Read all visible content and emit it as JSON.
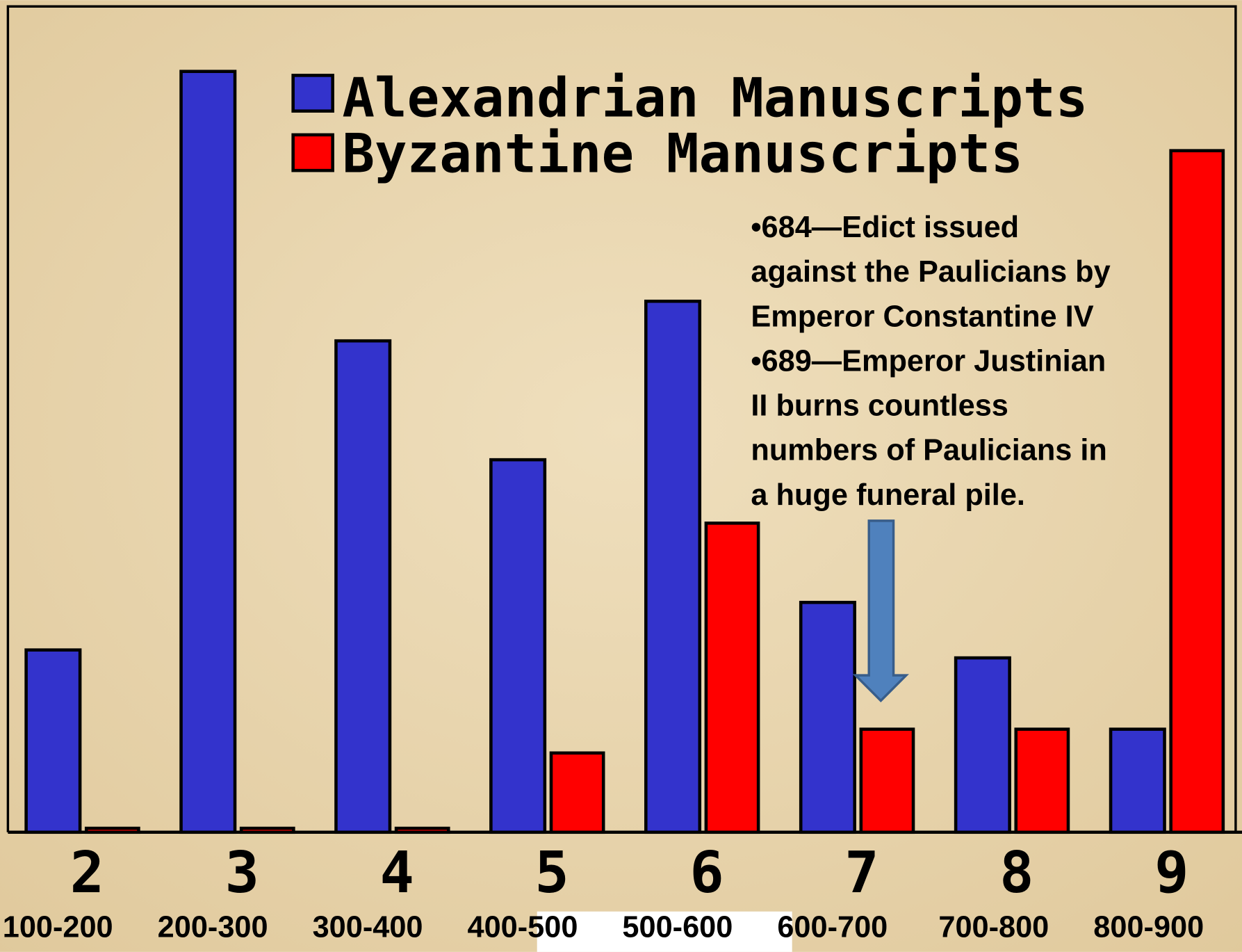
{
  "chart_data": {
    "type": "bar",
    "categories": [
      "2",
      "3",
      "4",
      "5",
      "6",
      "7",
      "8",
      "9"
    ],
    "periods": [
      "100-200",
      "200-300",
      "300-400",
      "400-500",
      "500-600",
      "600-700",
      "700-800",
      "800-900"
    ],
    "series": [
      {
        "name": "Alexandrian Manuscripts",
        "color": "#3333cc",
        "values": [
          23,
          96,
          62,
          47,
          67,
          29,
          22,
          13
        ]
      },
      {
        "name": "Byzantine Manuscripts",
        "color": "#ff0000",
        "values": [
          0.5,
          0.5,
          0.5,
          10,
          39,
          13,
          13,
          86
        ]
      }
    ],
    "ylim": [
      0,
      100
    ],
    "annotation": [
      "•684—Edict issued",
      "against the Paulicians by",
      "Emperor Constantine IV",
      "•689—Emperor Justinian",
      "II burns countless",
      "numbers of Paulicians in",
      "a huge funeral pile."
    ]
  }
}
